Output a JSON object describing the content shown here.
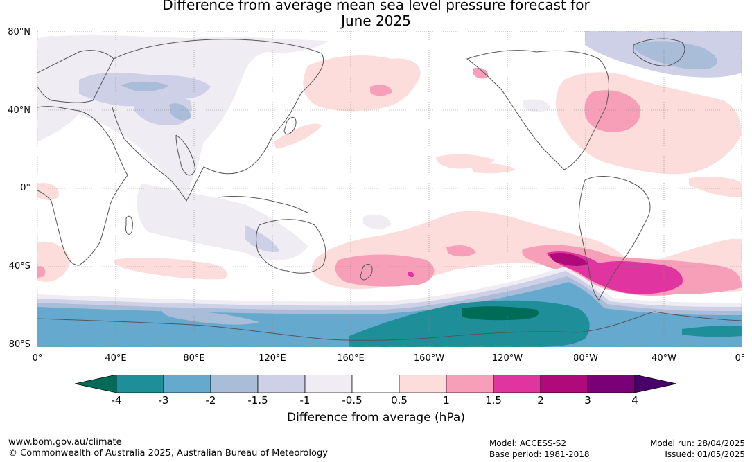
{
  "title": {
    "line1": "Difference from average mean sea level pressure forecast for",
    "line2": "June 2025"
  },
  "map": {
    "lat_labels": [
      "80°N",
      "40°N",
      "0°",
      "40°S",
      "80°S"
    ],
    "lon_labels": [
      "0°",
      "40°E",
      "80°E",
      "120°E",
      "160°E",
      "160°W",
      "120°W",
      "80°W",
      "40°W",
      "0°"
    ],
    "colors": {
      "neg4": "#006b56",
      "neg3": "#1e8f98",
      "neg2": "#65a9cf",
      "neg15": "#a9bcd8",
      "neg1": "#cdd0e6",
      "neg05": "#efecf4",
      "zero": "#ffffff",
      "pos05": "#fddcdc",
      "pos1": "#f79fb8",
      "pos15": "#e035a0",
      "pos2": "#b00a7a",
      "pos3": "#7a0077",
      "pos4": "#49006a"
    }
  },
  "colorbar": {
    "ticks": [
      "-4",
      "-3",
      "-2",
      "-1.5",
      "-1",
      "-0.5",
      "0.5",
      "1",
      "1.5",
      "2",
      "3",
      "4"
    ],
    "title": "Difference from average (hPa)"
  },
  "footer": {
    "url": "www.bom.gov.au/climate",
    "copyright": "© Commonwealth of Australia 2025, Australian Bureau of Meteorology",
    "model": "Model: ACCESS-S2",
    "base_period": "Base period: 1981-2018",
    "model_run": "Model run: 28/04/2025",
    "issued": "Issued: 01/05/2025"
  }
}
